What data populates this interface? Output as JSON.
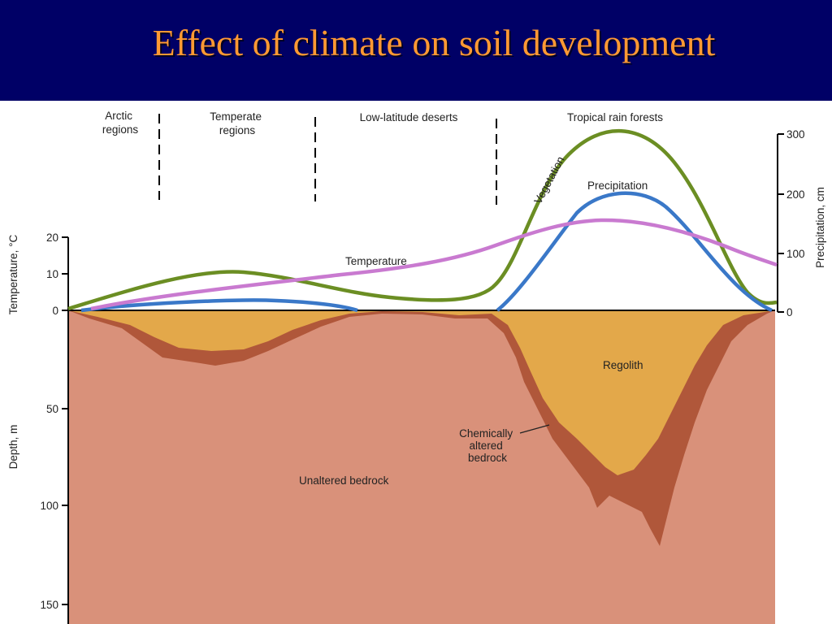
{
  "slide": {
    "title": "Effect of climate on soil development"
  },
  "regions": [
    {
      "line1": "Arctic",
      "line2": "regions"
    },
    {
      "line1": "Temperate",
      "line2": "regions"
    },
    {
      "line1": "Low-latitude deserts",
      "line2": ""
    },
    {
      "line1": "Tropical rain forests",
      "line2": ""
    }
  ],
  "axes": {
    "temperature": {
      "title": "Temperature, °C",
      "ticks": [
        "20",
        "10",
        "0"
      ]
    },
    "precipitation": {
      "title": "Precipitation, cm",
      "ticks": [
        "300",
        "200",
        "100",
        "0"
      ]
    },
    "depth": {
      "title": "Depth, m",
      "ticks": [
        "50",
        "100",
        "150"
      ]
    }
  },
  "curves": {
    "vegetation": {
      "label": "Vegetation",
      "color": "#6b8e23"
    },
    "precipitation": {
      "label": "Precipitation",
      "color": "#3a78c8"
    },
    "temperature": {
      "label": "Temperature",
      "color": "#c97ad0"
    }
  },
  "layers": {
    "regolith": {
      "label": "Regolith",
      "color": "#e3a84a"
    },
    "altered": {
      "line1": "Chemically",
      "line2": "altered",
      "line3": "bedrock",
      "color": "#b0573a"
    },
    "bedrock": {
      "label": "Unaltered bedrock",
      "color": "#d9917a"
    }
  }
}
